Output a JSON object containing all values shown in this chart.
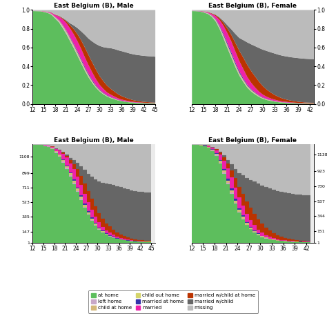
{
  "title_male": "East Belgium (B), Male",
  "title_female": "East Belgium (B), Female",
  "colors": {
    "at_home": "#5dbe5d",
    "left_home": "#c8a8c8",
    "child_at_home": "#d4b87a",
    "child_out_home": "#d4d46a",
    "married_at_home": "#3333aa",
    "married": "#ee22aa",
    "married_wchild_at_home": "#bb3300",
    "married_wchild": "#666666",
    "missing": "#bbbbbb"
  },
  "color_order": [
    "at_home",
    "left_home",
    "child_at_home",
    "child_out_home",
    "married_at_home",
    "married",
    "married_wchild_at_home",
    "married_wchild",
    "missing"
  ],
  "legend_items": [
    {
      "label": "at home",
      "color": "#5dbe5d"
    },
    {
      "label": "left home",
      "color": "#c8a8c8"
    },
    {
      "label": "child at home",
      "color": "#d4b87a"
    },
    {
      "label": "child out home",
      "color": "#d4d46a"
    },
    {
      "label": "married at home",
      "color": "#3333aa"
    },
    {
      "label": "married",
      "color": "#ee22aa"
    },
    {
      "label": "married w/child at home",
      "color": "#bb3300"
    },
    {
      "label": "married w/child",
      "color": "#666666"
    },
    {
      "label": "missing",
      "color": "#bbbbbb"
    }
  ],
  "ages_male": [
    12,
    13,
    14,
    15,
    16,
    17,
    18,
    19,
    20,
    21,
    22,
    23,
    24,
    25,
    26,
    27,
    28,
    29,
    30,
    31,
    32,
    33,
    34,
    35,
    36,
    37,
    38,
    39,
    40,
    41,
    42,
    43,
    44,
    45
  ],
  "ages_female": [
    12,
    13,
    14,
    15,
    16,
    17,
    18,
    19,
    20,
    21,
    22,
    23,
    24,
    25,
    26,
    27,
    28,
    29,
    30,
    31,
    32,
    33,
    34,
    35,
    36,
    37,
    38,
    39,
    40,
    41,
    42,
    43
  ],
  "xticks_male": [
    12,
    15,
    18,
    21,
    24,
    27,
    30,
    33,
    36,
    39,
    42,
    45
  ],
  "xticks_female": [
    12,
    15,
    18,
    21,
    24,
    27,
    30,
    33,
    36,
    39,
    42
  ],
  "male_freq": {
    "at_home": [
      0.99,
      0.989,
      0.988,
      0.98,
      0.97,
      0.95,
      0.91,
      0.87,
      0.81,
      0.745,
      0.67,
      0.595,
      0.515,
      0.435,
      0.355,
      0.285,
      0.225,
      0.175,
      0.135,
      0.105,
      0.082,
      0.065,
      0.052,
      0.04,
      0.032,
      0.026,
      0.021,
      0.017,
      0.014,
      0.012,
      0.01,
      0.009,
      0.008,
      0.007
    ],
    "left_home": [
      0.001,
      0.001,
      0.002,
      0.003,
      0.004,
      0.005,
      0.008,
      0.01,
      0.012,
      0.013,
      0.013,
      0.012,
      0.01,
      0.009,
      0.007,
      0.006,
      0.005,
      0.004,
      0.003,
      0.003,
      0.002,
      0.002,
      0.002,
      0.001,
      0.001,
      0.001,
      0.001,
      0.001,
      0.001,
      0.001,
      0.001,
      0.001,
      0.001,
      0.001
    ],
    "child_at_home": [
      0.001,
      0.001,
      0.001,
      0.002,
      0.003,
      0.005,
      0.007,
      0.01,
      0.013,
      0.015,
      0.016,
      0.017,
      0.016,
      0.015,
      0.013,
      0.011,
      0.009,
      0.007,
      0.006,
      0.005,
      0.004,
      0.003,
      0.003,
      0.002,
      0.002,
      0.001,
      0.001,
      0.001,
      0.001,
      0.001,
      0.001,
      0.001,
      0.001,
      0.001
    ],
    "child_out_home": [
      0.0,
      0.0,
      0.0,
      0.0,
      0.0,
      0.001,
      0.001,
      0.002,
      0.003,
      0.004,
      0.005,
      0.006,
      0.007,
      0.008,
      0.008,
      0.008,
      0.007,
      0.006,
      0.005,
      0.004,
      0.003,
      0.003,
      0.002,
      0.002,
      0.001,
      0.001,
      0.001,
      0.001,
      0.001,
      0.001,
      0.001,
      0.001,
      0.001,
      0.001
    ],
    "married_at_home": [
      0.0,
      0.0,
      0.0,
      0.0,
      0.001,
      0.001,
      0.002,
      0.003,
      0.005,
      0.007,
      0.009,
      0.011,
      0.012,
      0.013,
      0.013,
      0.012,
      0.011,
      0.009,
      0.007,
      0.006,
      0.005,
      0.004,
      0.003,
      0.003,
      0.002,
      0.002,
      0.001,
      0.001,
      0.001,
      0.001,
      0.001,
      0.001,
      0.001,
      0.001
    ],
    "married": [
      0.001,
      0.001,
      0.002,
      0.003,
      0.005,
      0.01,
      0.02,
      0.038,
      0.06,
      0.078,
      0.092,
      0.102,
      0.108,
      0.108,
      0.102,
      0.092,
      0.08,
      0.065,
      0.05,
      0.04,
      0.03,
      0.025,
      0.02,
      0.015,
      0.012,
      0.01,
      0.008,
      0.006,
      0.005,
      0.004,
      0.003,
      0.003,
      0.002,
      0.002
    ],
    "married_wchild_at_home": [
      0.0,
      0.0,
      0.0,
      0.001,
      0.001,
      0.002,
      0.003,
      0.005,
      0.01,
      0.02,
      0.035,
      0.055,
      0.075,
      0.092,
      0.105,
      0.108,
      0.107,
      0.102,
      0.092,
      0.082,
      0.072,
      0.062,
      0.052,
      0.043,
      0.036,
      0.029,
      0.023,
      0.018,
      0.014,
      0.011,
      0.009,
      0.007,
      0.006,
      0.005
    ],
    "married_wchild": [
      0.0,
      0.0,
      0.0,
      0.0,
      0.001,
      0.001,
      0.002,
      0.003,
      0.005,
      0.01,
      0.02,
      0.04,
      0.065,
      0.095,
      0.135,
      0.175,
      0.222,
      0.272,
      0.322,
      0.362,
      0.402,
      0.432,
      0.452,
      0.467,
      0.477,
      0.482,
      0.484,
      0.486,
      0.487,
      0.488,
      0.488,
      0.488,
      0.488,
      0.487
    ],
    "missing": [
      0.007,
      0.008,
      0.007,
      0.011,
      0.015,
      0.025,
      0.047,
      0.059,
      0.082,
      0.108,
      0.14,
      0.162,
      0.19,
      0.225,
      0.262,
      0.303,
      0.333,
      0.36,
      0.38,
      0.393,
      0.4,
      0.404,
      0.413,
      0.426,
      0.436,
      0.447,
      0.458,
      0.468,
      0.475,
      0.48,
      0.485,
      0.488,
      0.49,
      0.494
    ]
  },
  "female_freq": {
    "at_home": [
      0.99,
      0.989,
      0.985,
      0.975,
      0.96,
      0.93,
      0.88,
      0.8,
      0.7,
      0.595,
      0.495,
      0.395,
      0.308,
      0.238,
      0.178,
      0.136,
      0.105,
      0.078,
      0.058,
      0.045,
      0.035,
      0.028,
      0.022,
      0.018,
      0.015,
      0.012,
      0.01,
      0.008,
      0.007,
      0.006,
      0.005,
      0.005
    ],
    "left_home": [
      0.001,
      0.001,
      0.002,
      0.003,
      0.005,
      0.007,
      0.01,
      0.012,
      0.013,
      0.013,
      0.012,
      0.01,
      0.009,
      0.007,
      0.006,
      0.005,
      0.004,
      0.003,
      0.003,
      0.002,
      0.002,
      0.001,
      0.001,
      0.001,
      0.001,
      0.001,
      0.001,
      0.001,
      0.001,
      0.001,
      0.001,
      0.001
    ],
    "child_at_home": [
      0.001,
      0.001,
      0.001,
      0.002,
      0.003,
      0.005,
      0.008,
      0.012,
      0.015,
      0.017,
      0.017,
      0.016,
      0.014,
      0.012,
      0.01,
      0.008,
      0.006,
      0.005,
      0.004,
      0.003,
      0.003,
      0.002,
      0.002,
      0.001,
      0.001,
      0.001,
      0.001,
      0.001,
      0.001,
      0.001,
      0.001,
      0.001
    ],
    "child_out_home": [
      0.0,
      0.0,
      0.0,
      0.0,
      0.001,
      0.001,
      0.002,
      0.003,
      0.005,
      0.006,
      0.007,
      0.007,
      0.007,
      0.007,
      0.006,
      0.005,
      0.005,
      0.004,
      0.003,
      0.003,
      0.002,
      0.002,
      0.001,
      0.001,
      0.001,
      0.001,
      0.001,
      0.001,
      0.001,
      0.001,
      0.001,
      0.001
    ],
    "married_at_home": [
      0.0,
      0.0,
      0.001,
      0.001,
      0.002,
      0.003,
      0.006,
      0.01,
      0.015,
      0.018,
      0.019,
      0.018,
      0.016,
      0.013,
      0.01,
      0.008,
      0.006,
      0.005,
      0.004,
      0.003,
      0.002,
      0.002,
      0.001,
      0.001,
      0.001,
      0.001,
      0.001,
      0.001,
      0.001,
      0.001,
      0.001,
      0.001
    ],
    "married": [
      0.001,
      0.001,
      0.002,
      0.004,
      0.008,
      0.015,
      0.032,
      0.058,
      0.085,
      0.105,
      0.115,
      0.115,
      0.11,
      0.098,
      0.082,
      0.067,
      0.052,
      0.04,
      0.03,
      0.023,
      0.018,
      0.014,
      0.011,
      0.008,
      0.007,
      0.005,
      0.004,
      0.003,
      0.003,
      0.002,
      0.002,
      0.002
    ],
    "married_wchild_at_home": [
      0.0,
      0.0,
      0.001,
      0.002,
      0.003,
      0.005,
      0.01,
      0.02,
      0.033,
      0.05,
      0.07,
      0.092,
      0.11,
      0.122,
      0.128,
      0.125,
      0.118,
      0.105,
      0.09,
      0.075,
      0.062,
      0.05,
      0.04,
      0.031,
      0.024,
      0.019,
      0.015,
      0.012,
      0.009,
      0.007,
      0.006,
      0.005
    ],
    "married_wchild": [
      0.0,
      0.0,
      0.0,
      0.001,
      0.001,
      0.002,
      0.004,
      0.008,
      0.018,
      0.035,
      0.06,
      0.095,
      0.138,
      0.185,
      0.238,
      0.283,
      0.322,
      0.358,
      0.388,
      0.412,
      0.428,
      0.44,
      0.448,
      0.454,
      0.458,
      0.46,
      0.462,
      0.463,
      0.463,
      0.464,
      0.464,
      0.464
    ],
    "missing": [
      0.007,
      0.008,
      0.008,
      0.012,
      0.017,
      0.032,
      0.048,
      0.077,
      0.116,
      0.161,
      0.205,
      0.252,
      0.298,
      0.318,
      0.342,
      0.363,
      0.382,
      0.402,
      0.42,
      0.434,
      0.448,
      0.461,
      0.474,
      0.484,
      0.492,
      0.499,
      0.504,
      0.509,
      0.514,
      0.517,
      0.519,
      0.52
    ]
  },
  "yticks_bottom_male": [
    1,
    147,
    335,
    523,
    711,
    899,
    1108
  ],
  "yticks_bottom_female": [
    1,
    151,
    344,
    537,
    730,
    923,
    1138
  ],
  "n_seq": 1273,
  "background": "#ebebeb"
}
